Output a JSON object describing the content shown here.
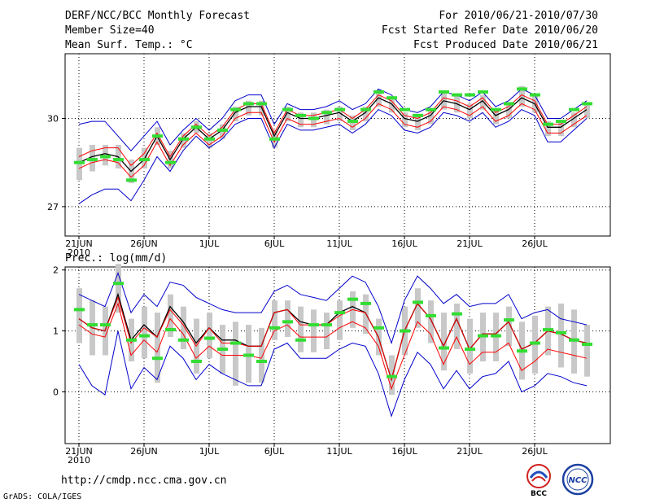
{
  "header": {
    "title": "DERF/NCC/BCC Monthly Forecast",
    "member_size": "Member Size=40",
    "variable": "Mean Surf. Temp.: °C",
    "period": "For 2010/06/21-2010/07/30",
    "refer_date": "Fcst Started Refer Date 2010/06/20",
    "produced_date": "Fcst Produced Date 2010/06/21"
  },
  "footer": {
    "url": "http://cmdp.ncc.cma.gov.cn",
    "grads": "GrADS: COLA/IGES",
    "logo_bcc": "BCC",
    "logo_ncc": "NCC"
  },
  "chart_data": [
    {
      "type": "line",
      "title": "Mean Surf. Temp.: °C",
      "x_labels": [
        "21JUN",
        "26JUN",
        "1JUL",
        "6JUL",
        "11JUL",
        "16JUL",
        "21JUL",
        "26JUL"
      ],
      "x_year_label": "2010",
      "x_label_days": [
        0,
        5,
        10,
        15,
        20,
        25,
        30,
        35
      ],
      "ylim": [
        26.0,
        32.2
      ],
      "yticks": [
        27,
        30
      ],
      "ytick_labels": [
        "27",
        "30"
      ],
      "days": 40,
      "series": [
        {
          "name": "ensemble mean",
          "color": "#000000",
          "values": [
            28.5,
            28.7,
            28.8,
            28.7,
            28.2,
            28.6,
            29.4,
            28.6,
            29.3,
            29.7,
            29.3,
            29.6,
            30.2,
            30.4,
            30.4,
            29.4,
            30.2,
            30.0,
            30.0,
            30.1,
            30.2,
            29.9,
            30.2,
            30.7,
            30.5,
            30.0,
            29.9,
            30.1,
            30.6,
            30.5,
            30.3,
            30.6,
            30.1,
            30.3,
            30.7,
            30.5,
            29.7,
            29.7,
            30.0,
            30.3
          ]
        },
        {
          "name": "upper member envelope (red)",
          "color": "#ff0000",
          "values": [
            28.7,
            28.9,
            29.0,
            29.0,
            28.4,
            28.8,
            29.5,
            28.7,
            29.4,
            29.8,
            29.4,
            29.7,
            30.3,
            30.5,
            30.5,
            29.5,
            30.3,
            30.1,
            30.1,
            30.2,
            30.3,
            30.0,
            30.3,
            30.8,
            30.6,
            30.1,
            30.0,
            30.2,
            30.7,
            30.6,
            30.4,
            30.7,
            30.2,
            30.4,
            30.8,
            30.6,
            29.8,
            29.8,
            30.1,
            30.4
          ]
        },
        {
          "name": "lower member envelope (red)",
          "color": "#ff0000",
          "values": [
            28.3,
            28.5,
            28.6,
            28.5,
            28.0,
            28.4,
            29.2,
            28.4,
            29.1,
            29.5,
            29.1,
            29.4,
            30.0,
            30.2,
            30.2,
            29.2,
            30.0,
            29.8,
            29.8,
            29.9,
            30.0,
            29.7,
            30.0,
            30.5,
            30.3,
            29.8,
            29.7,
            29.9,
            30.4,
            30.3,
            30.1,
            30.4,
            29.9,
            30.1,
            30.5,
            30.3,
            29.5,
            29.5,
            29.8,
            30.1
          ]
        },
        {
          "name": "upper bound (blue)",
          "color": "#0000cc",
          "values": [
            29.8,
            29.9,
            29.9,
            29.4,
            28.9,
            29.4,
            29.9,
            29.1,
            29.6,
            30.0,
            29.6,
            30.0,
            30.6,
            30.8,
            30.8,
            29.8,
            30.5,
            30.3,
            30.3,
            30.4,
            30.6,
            30.3,
            30.5,
            31.0,
            30.8,
            30.3,
            30.2,
            30.4,
            30.9,
            30.8,
            30.6,
            30.9,
            30.4,
            30.6,
            31.0,
            30.8,
            30.0,
            30.0,
            30.3,
            30.6
          ]
        },
        {
          "name": "lower bound (blue)",
          "color": "#0000cc",
          "values": [
            27.1,
            27.4,
            27.6,
            27.6,
            27.2,
            27.9,
            28.7,
            28.2,
            28.9,
            29.4,
            29.0,
            29.3,
            29.8,
            30.0,
            30.0,
            29.0,
            29.8,
            29.6,
            29.6,
            29.7,
            29.8,
            29.5,
            29.8,
            30.3,
            30.1,
            29.6,
            29.5,
            29.7,
            30.2,
            30.1,
            29.9,
            30.2,
            29.7,
            29.9,
            30.3,
            30.1,
            29.2,
            29.2,
            29.6,
            30.0
          ]
        },
        {
          "name": "member spread high (gray)",
          "color": "#c8c8c8",
          "values": [
            29.0,
            29.1,
            29.1,
            29.1,
            28.6,
            29.0,
            29.7,
            28.9,
            29.5,
            29.9,
            29.5,
            29.8,
            30.4,
            30.6,
            30.6,
            29.6,
            30.4,
            30.2,
            30.2,
            30.3,
            30.4,
            30.1,
            30.4,
            30.9,
            30.7,
            30.2,
            30.1,
            30.3,
            30.9,
            30.8,
            30.5,
            30.8,
            30.3,
            30.5,
            31.1,
            30.8,
            29.9,
            29.9,
            30.2,
            30.5
          ]
        },
        {
          "name": "member spread low (gray)",
          "color": "#c8c8c8",
          "values": [
            27.9,
            28.2,
            28.4,
            28.3,
            27.8,
            28.3,
            29.1,
            28.3,
            29.0,
            29.5,
            29.0,
            29.3,
            29.9,
            30.1,
            30.1,
            29.0,
            29.9,
            29.7,
            29.7,
            29.8,
            29.9,
            29.6,
            29.9,
            30.4,
            30.2,
            29.7,
            29.6,
            29.8,
            30.3,
            30.2,
            30.0,
            30.3,
            29.8,
            30.0,
            30.4,
            30.2,
            29.4,
            29.4,
            29.7,
            30.0
          ]
        },
        {
          "name": "observation/climate (green)",
          "color": "#33dd33",
          "values": [
            28.5,
            28.6,
            28.7,
            28.6,
            27.9,
            28.6,
            29.4,
            28.5,
            29.3,
            29.7,
            29.3,
            29.6,
            30.3,
            30.5,
            30.5,
            29.3,
            30.3,
            30.1,
            30.0,
            30.2,
            30.3,
            29.9,
            30.3,
            30.9,
            30.7,
            30.3,
            30.1,
            30.3,
            30.9,
            30.8,
            30.8,
            30.9,
            30.3,
            30.5,
            31.0,
            30.8,
            29.8,
            29.9,
            30.3,
            30.5
          ]
        }
      ]
    },
    {
      "type": "line",
      "title": "Prec.: log(mm/d)",
      "x_labels": [
        "21JUN",
        "26JUN",
        "1JUL",
        "6JUL",
        "11JUL",
        "16JUL",
        "21JUL",
        "26JUL"
      ],
      "x_year_label": "2010",
      "x_label_days": [
        0,
        5,
        10,
        15,
        20,
        25,
        30,
        35
      ],
      "ylim": [
        -0.85,
        2.05
      ],
      "yticks": [
        0,
        1,
        2
      ],
      "ytick_labels": [
        "0",
        "1",
        "2"
      ],
      "days": 40,
      "series": [
        {
          "name": "ensemble mean",
          "color": "#000000",
          "values": [
            1.2,
            1.05,
            1.0,
            1.6,
            0.85,
            1.1,
            0.9,
            1.4,
            1.15,
            0.8,
            1.05,
            0.85,
            0.85,
            0.75,
            0.75,
            1.3,
            1.35,
            1.15,
            1.1,
            1.1,
            1.3,
            1.4,
            1.3,
            0.9,
            0.2,
            1.0,
            1.45,
            1.2,
            0.75,
            1.2,
            0.7,
            0.95,
            0.95,
            1.15,
            0.7,
            0.8,
            1.0,
            0.95,
            0.85,
            0.8
          ]
        },
        {
          "name": "upper member envelope (red)",
          "color": "#ff0000",
          "values": [
            1.2,
            1.05,
            1.0,
            1.55,
            0.8,
            1.05,
            0.9,
            1.35,
            1.1,
            0.75,
            1.05,
            0.8,
            0.8,
            0.75,
            0.75,
            1.3,
            1.35,
            1.1,
            1.1,
            1.1,
            1.25,
            1.35,
            1.3,
            0.9,
            0.2,
            1.0,
            1.45,
            1.2,
            0.75,
            1.2,
            0.7,
            0.95,
            0.95,
            1.15,
            0.7,
            0.8,
            1.0,
            0.95,
            0.85,
            0.8
          ]
        },
        {
          "name": "lower member envelope (red)",
          "color": "#ff0000",
          "values": [
            1.1,
            0.95,
            0.9,
            1.45,
            0.6,
            0.85,
            0.65,
            1.2,
            0.95,
            0.55,
            0.75,
            0.6,
            0.6,
            0.6,
            0.55,
            1.0,
            1.1,
            0.9,
            0.9,
            0.9,
            1.05,
            1.15,
            1.05,
            0.75,
            0.05,
            0.6,
            1.15,
            0.95,
            0.45,
            0.9,
            0.45,
            0.65,
            0.65,
            0.8,
            0.35,
            0.5,
            0.7,
            0.65,
            0.6,
            0.55
          ]
        },
        {
          "name": "upper bound (blue)",
          "color": "#0000cc",
          "values": [
            1.6,
            1.5,
            1.4,
            1.95,
            1.3,
            1.6,
            1.4,
            1.8,
            1.75,
            1.55,
            1.45,
            1.35,
            1.3,
            1.3,
            1.3,
            1.65,
            1.75,
            1.6,
            1.55,
            1.5,
            1.7,
            1.9,
            1.8,
            1.4,
            0.8,
            1.5,
            1.9,
            1.7,
            1.45,
            1.6,
            1.4,
            1.45,
            1.45,
            1.6,
            1.2,
            1.3,
            1.35,
            1.2,
            1.15,
            1.1
          ]
        },
        {
          "name": "lower bound (blue)",
          "color": "#0000cc",
          "values": [
            0.45,
            0.1,
            -0.05,
            1.0,
            0.05,
            0.4,
            0.2,
            0.75,
            0.55,
            0.2,
            0.45,
            0.3,
            0.2,
            0.1,
            0.1,
            0.7,
            0.8,
            0.55,
            0.55,
            0.55,
            0.7,
            0.8,
            0.75,
            0.3,
            -0.4,
            0.2,
            0.65,
            0.45,
            0.05,
            0.35,
            0.05,
            0.25,
            0.3,
            0.5,
            0.0,
            0.1,
            0.3,
            0.25,
            0.15,
            0.1
          ]
        },
        {
          "name": "member spread high (gray)",
          "color": "#c8c8c8",
          "values": [
            1.7,
            1.5,
            1.4,
            2.1,
            1.2,
            1.4,
            1.3,
            1.6,
            1.4,
            1.2,
            1.3,
            1.1,
            1.15,
            1.1,
            1.05,
            1.5,
            1.5,
            1.4,
            1.35,
            1.3,
            1.5,
            1.65,
            1.6,
            1.2,
            0.6,
            1.4,
            1.7,
            1.5,
            1.3,
            1.45,
            1.2,
            1.3,
            1.3,
            1.4,
            1.15,
            1.25,
            1.4,
            1.45,
            1.35,
            1.1
          ]
        },
        {
          "name": "member spread low (gray)",
          "color": "#c8c8c8",
          "values": [
            0.8,
            0.6,
            0.6,
            1.3,
            0.5,
            0.55,
            0.15,
            0.9,
            0.7,
            0.3,
            0.55,
            0.3,
            0.1,
            0.15,
            0.15,
            0.85,
            0.9,
            0.65,
            0.65,
            0.7,
            0.85,
            1.05,
            0.95,
            0.6,
            -0.05,
            0.6,
            1.05,
            0.8,
            0.35,
            0.7,
            0.3,
            0.5,
            0.5,
            0.75,
            0.2,
            0.3,
            0.6,
            0.4,
            0.3,
            0.25
          ]
        },
        {
          "name": "observation/climate (green)",
          "color": "#33dd33",
          "values": [
            1.35,
            1.1,
            1.1,
            1.78,
            0.85,
            0.92,
            0.55,
            1.02,
            0.85,
            0.5,
            0.88,
            0.7,
            0.8,
            0.6,
            0.5,
            1.05,
            1.15,
            0.85,
            1.1,
            1.1,
            1.3,
            1.52,
            1.45,
            1.05,
            0.25,
            1.0,
            1.47,
            1.25,
            0.72,
            1.28,
            0.7,
            0.92,
            0.92,
            1.18,
            0.67,
            0.8,
            1.02,
            0.97,
            0.85,
            0.78
          ]
        }
      ]
    }
  ]
}
